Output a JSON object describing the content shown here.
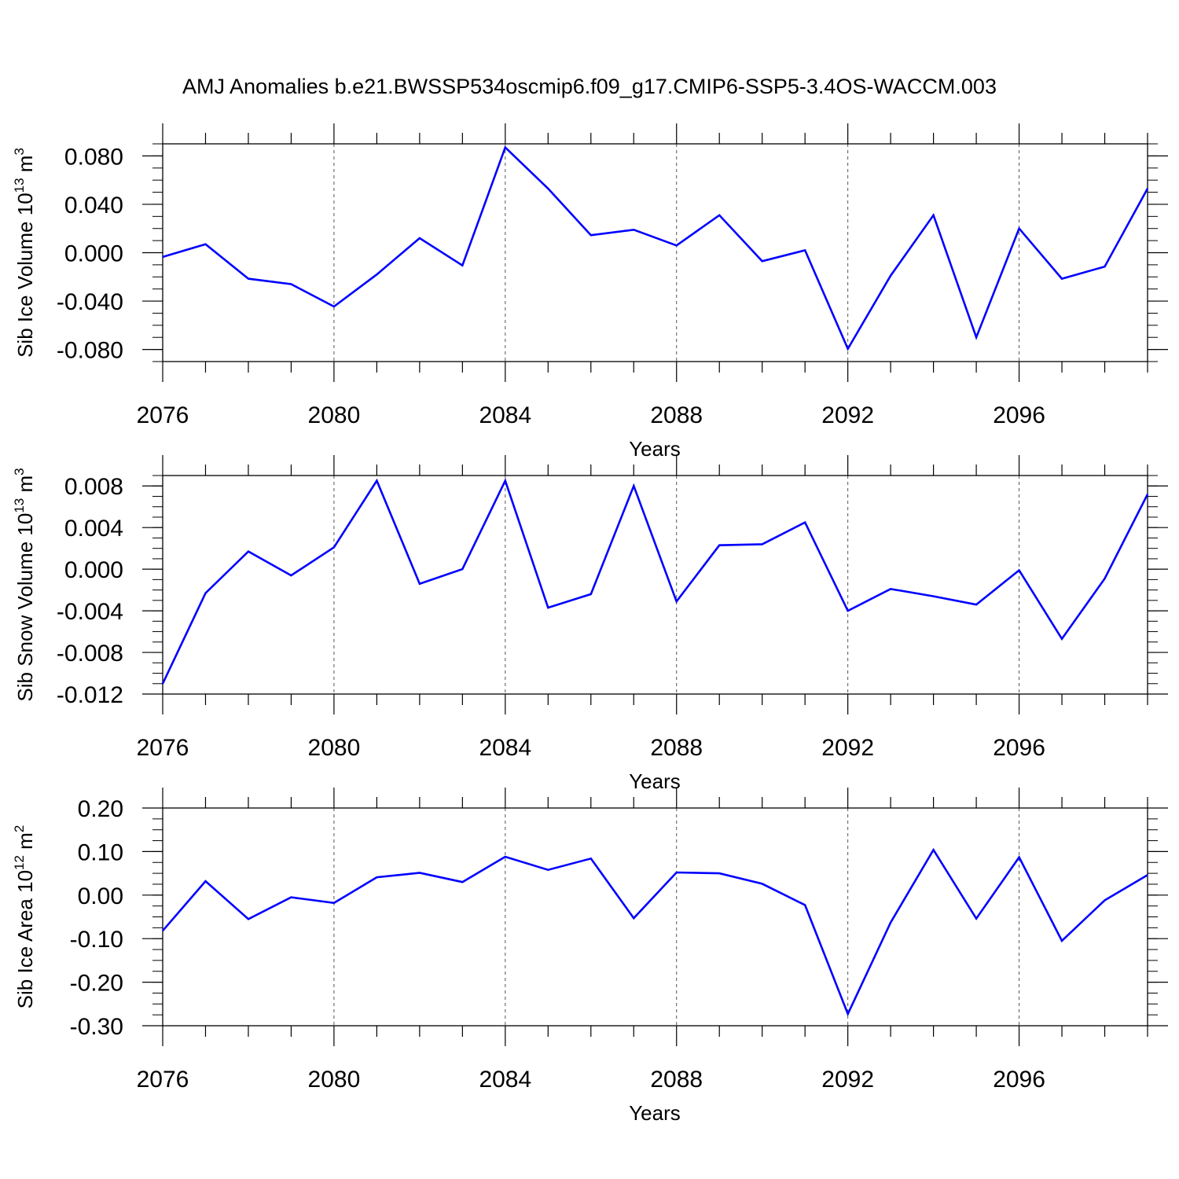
{
  "title": "AMJ Anomalies b.e21.BWSSP534oscmip6.f09_g17.CMIP6-SSP5-3.4OS-WACCM.003",
  "line_color": "#0000ff",
  "chart_data": [
    {
      "type": "line",
      "ylabel": "Sib Ice Volume 10",
      "ylabel_exp": "13",
      "ylabel_unit": " m",
      "ylabel_unit_exp": "3",
      "xlabel": "Years",
      "xlim": [
        2076,
        2099
      ],
      "ylim": [
        -0.09,
        0.09
      ],
      "x_ticks": [
        "2076",
        "2080",
        "2084",
        "2088",
        "2092",
        "2096"
      ],
      "y_ticks": [
        -0.08,
        -0.04,
        0.0,
        0.04,
        0.08
      ],
      "y_tick_labels": [
        "-0.080",
        "-0.040",
        "0.000",
        "0.040",
        "0.080"
      ],
      "grid": "dashed vertical at labeled years",
      "series": [
        {
          "name": "Sib Ice Volume",
          "x": [
            2076,
            2077,
            2078,
            2079,
            2080,
            2081,
            2082,
            2083,
            2084,
            2085,
            2086,
            2087,
            2088,
            2089,
            2090,
            2091,
            2092,
            2093,
            2094,
            2095,
            2096,
            2097,
            2098,
            2099
          ],
          "values": [
            -0.0035,
            0.007,
            -0.0215,
            -0.026,
            -0.0445,
            -0.018,
            0.012,
            -0.0105,
            0.087,
            0.053,
            0.0145,
            0.019,
            0.006,
            0.031,
            -0.007,
            0.002,
            -0.0795,
            -0.019,
            0.031,
            -0.07,
            0.02,
            -0.0215,
            -0.0115,
            0.053
          ]
        }
      ]
    },
    {
      "type": "line",
      "ylabel": "Sib Snow Volume 10",
      "ylabel_exp": "13",
      "ylabel_unit": " m",
      "ylabel_unit_exp": "3",
      "xlabel": "Years",
      "xlim": [
        2076,
        2099
      ],
      "ylim": [
        -0.012,
        0.009
      ],
      "x_ticks": [
        "2076",
        "2080",
        "2084",
        "2088",
        "2092",
        "2096"
      ],
      "y_ticks": [
        -0.012,
        -0.008,
        -0.004,
        0.0,
        0.004,
        0.008
      ],
      "y_tick_labels": [
        "-0.012",
        "-0.008",
        "-0.004",
        "0.000",
        "0.004",
        "0.008"
      ],
      "grid": "dashed vertical at labeled years",
      "series": [
        {
          "name": "Sib Snow Volume",
          "x": [
            2076,
            2077,
            2078,
            2079,
            2080,
            2081,
            2082,
            2083,
            2084,
            2085,
            2086,
            2087,
            2088,
            2089,
            2090,
            2091,
            2092,
            2093,
            2094,
            2095,
            2096,
            2097,
            2098,
            2099
          ],
          "values": [
            -0.011,
            -0.0023,
            0.0017,
            -0.0006,
            0.0021,
            0.0085,
            -0.0014,
            0.0,
            0.0085,
            -0.0037,
            -0.0024,
            0.008,
            -0.0031,
            0.0023,
            0.0024,
            0.0045,
            -0.004,
            -0.0019,
            -0.0026,
            -0.0034,
            -0.0001,
            -0.0067,
            -0.0009,
            0.0072
          ]
        }
      ]
    },
    {
      "type": "line",
      "ylabel": "Sib Ice Area 10",
      "ylabel_exp": "12",
      "ylabel_unit": " m",
      "ylabel_unit_exp": "2",
      "xlabel": "Years",
      "xlim": [
        2076,
        2099
      ],
      "ylim": [
        -0.3,
        0.2
      ],
      "x_ticks": [
        "2076",
        "2080",
        "2084",
        "2088",
        "2092",
        "2096"
      ],
      "y_ticks": [
        -0.3,
        -0.2,
        -0.1,
        0.0,
        0.1,
        0.2
      ],
      "y_tick_labels": [
        "-0.30",
        "-0.20",
        "-0.10",
        "0.00",
        "0.10",
        "0.20"
      ],
      "grid": "dashed vertical at labeled years",
      "series": [
        {
          "name": "Sib Ice Area",
          "x": [
            2076,
            2077,
            2078,
            2079,
            2080,
            2081,
            2082,
            2083,
            2084,
            2085,
            2086,
            2087,
            2088,
            2089,
            2090,
            2091,
            2092,
            2093,
            2094,
            2095,
            2096,
            2097,
            2098,
            2099
          ],
          "values": [
            -0.082,
            0.032,
            -0.055,
            -0.005,
            -0.018,
            0.041,
            0.051,
            0.03,
            0.088,
            0.058,
            0.084,
            -0.053,
            0.052,
            0.05,
            0.026,
            -0.023,
            -0.273,
            -0.063,
            0.104,
            -0.054,
            0.087,
            -0.105,
            -0.012,
            0.046
          ]
        }
      ]
    }
  ]
}
